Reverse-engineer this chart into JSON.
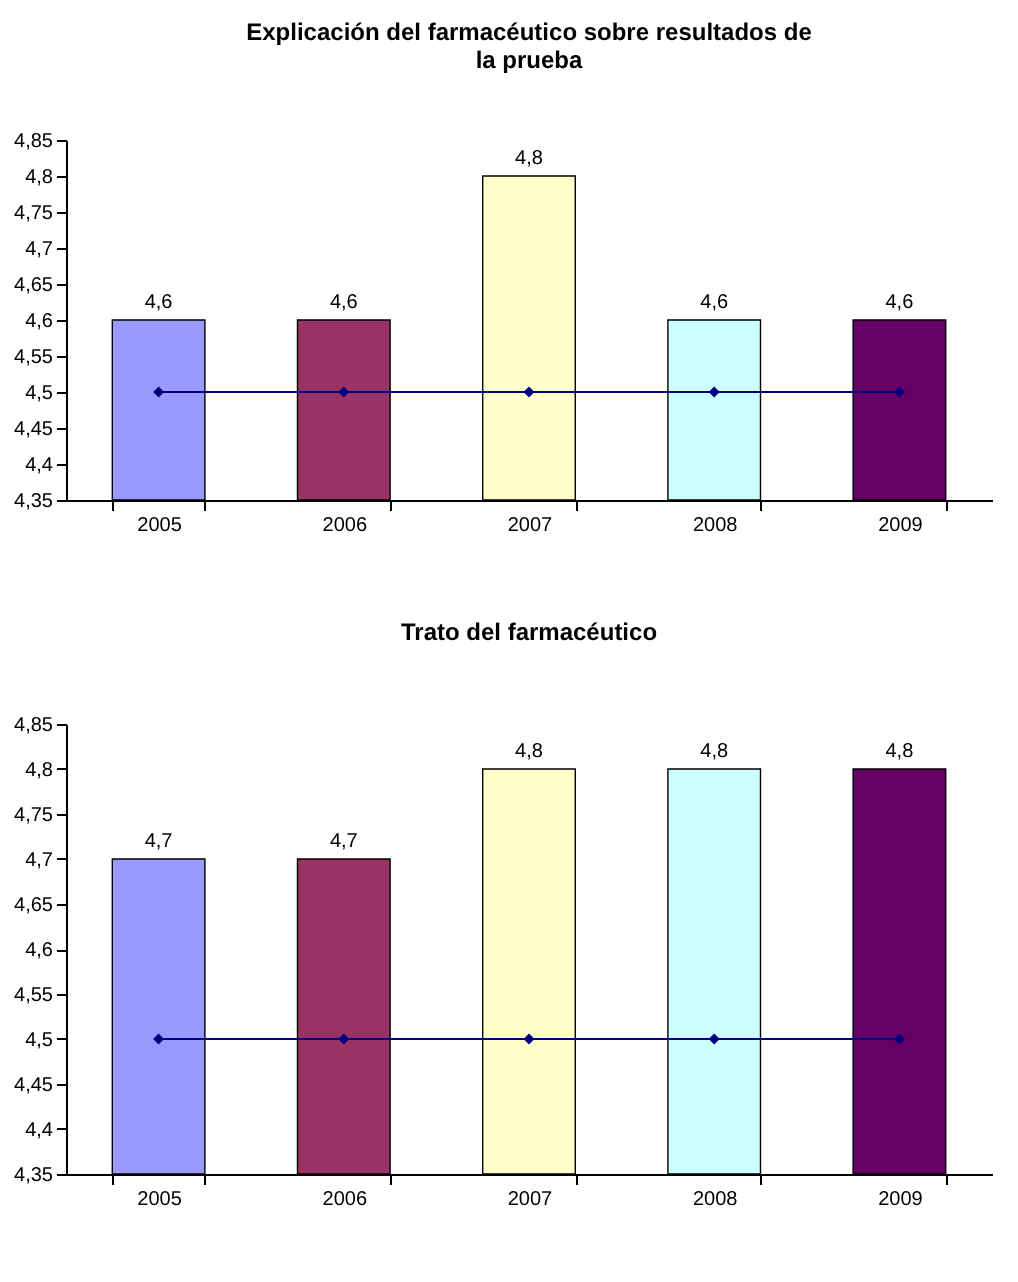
{
  "chart_data": [
    {
      "type": "bar",
      "title": "Explicación del farmacéutico sobre resultados de la prueba",
      "categories": [
        "2005",
        "2006",
        "2007",
        "2008",
        "2009"
      ],
      "ylim": [
        4.35,
        4.85
      ],
      "yticks": [
        {
          "value": 4.35,
          "label": "4,35"
        },
        {
          "value": 4.4,
          "label": "4,4"
        },
        {
          "value": 4.45,
          "label": "4,45"
        },
        {
          "value": 4.5,
          "label": "4,5"
        },
        {
          "value": 4.55,
          "label": "4,55"
        },
        {
          "value": 4.6,
          "label": "4,6"
        },
        {
          "value": 4.65,
          "label": "4,65"
        },
        {
          "value": 4.7,
          "label": "4,7"
        },
        {
          "value": 4.75,
          "label": "4,75"
        },
        {
          "value": 4.8,
          "label": "4,8"
        },
        {
          "value": 4.85,
          "label": "4,85"
        }
      ],
      "grid": false,
      "series": [
        {
          "colors": [
            "#9999ff",
            "#993366",
            "#ffffcc",
            "#ccffff",
            "#660066"
          ],
          "values": [
            4.6,
            4.6,
            4.8,
            4.6,
            4.6
          ],
          "value_labels": [
            "4,6",
            "4,6",
            "4,8",
            "4,6",
            "4,6"
          ]
        },
        {
          "type": "line",
          "color": "#000080",
          "marker": "diamond",
          "line_style": "solid",
          "values": [
            4.5,
            4.5,
            4.5,
            4.5,
            4.5
          ]
        }
      ]
    },
    {
      "type": "bar",
      "title": "Trato del farmacéutico",
      "categories": [
        "2005",
        "2006",
        "2007",
        "2008",
        "2009"
      ],
      "ylim": [
        4.35,
        4.85
      ],
      "yticks": [
        {
          "value": 4.35,
          "label": "4,35"
        },
        {
          "value": 4.4,
          "label": "4,4"
        },
        {
          "value": 4.45,
          "label": "4,45"
        },
        {
          "value": 4.5,
          "label": "4,5"
        },
        {
          "value": 4.55,
          "label": "4,55"
        },
        {
          "value": 4.6,
          "label": "4,6"
        },
        {
          "value": 4.65,
          "label": "4,65"
        },
        {
          "value": 4.7,
          "label": "4,7"
        },
        {
          "value": 4.75,
          "label": "4,75"
        },
        {
          "value": 4.8,
          "label": "4,8"
        },
        {
          "value": 4.85,
          "label": "4,85"
        }
      ],
      "grid": false,
      "series": [
        {
          "colors": [
            "#9999ff",
            "#993366",
            "#ffffcc",
            "#ccffff",
            "#660066"
          ],
          "values": [
            4.7,
            4.7,
            4.8,
            4.8,
            4.8
          ],
          "value_labels": [
            "4,7",
            "4,7",
            "4,8",
            "4,8",
            "4,8"
          ]
        },
        {
          "type": "line",
          "color": "#000080",
          "marker": "diamond",
          "line_style": "solid",
          "values": [
            4.5,
            4.5,
            4.5,
            4.5,
            4.5
          ]
        }
      ]
    }
  ]
}
